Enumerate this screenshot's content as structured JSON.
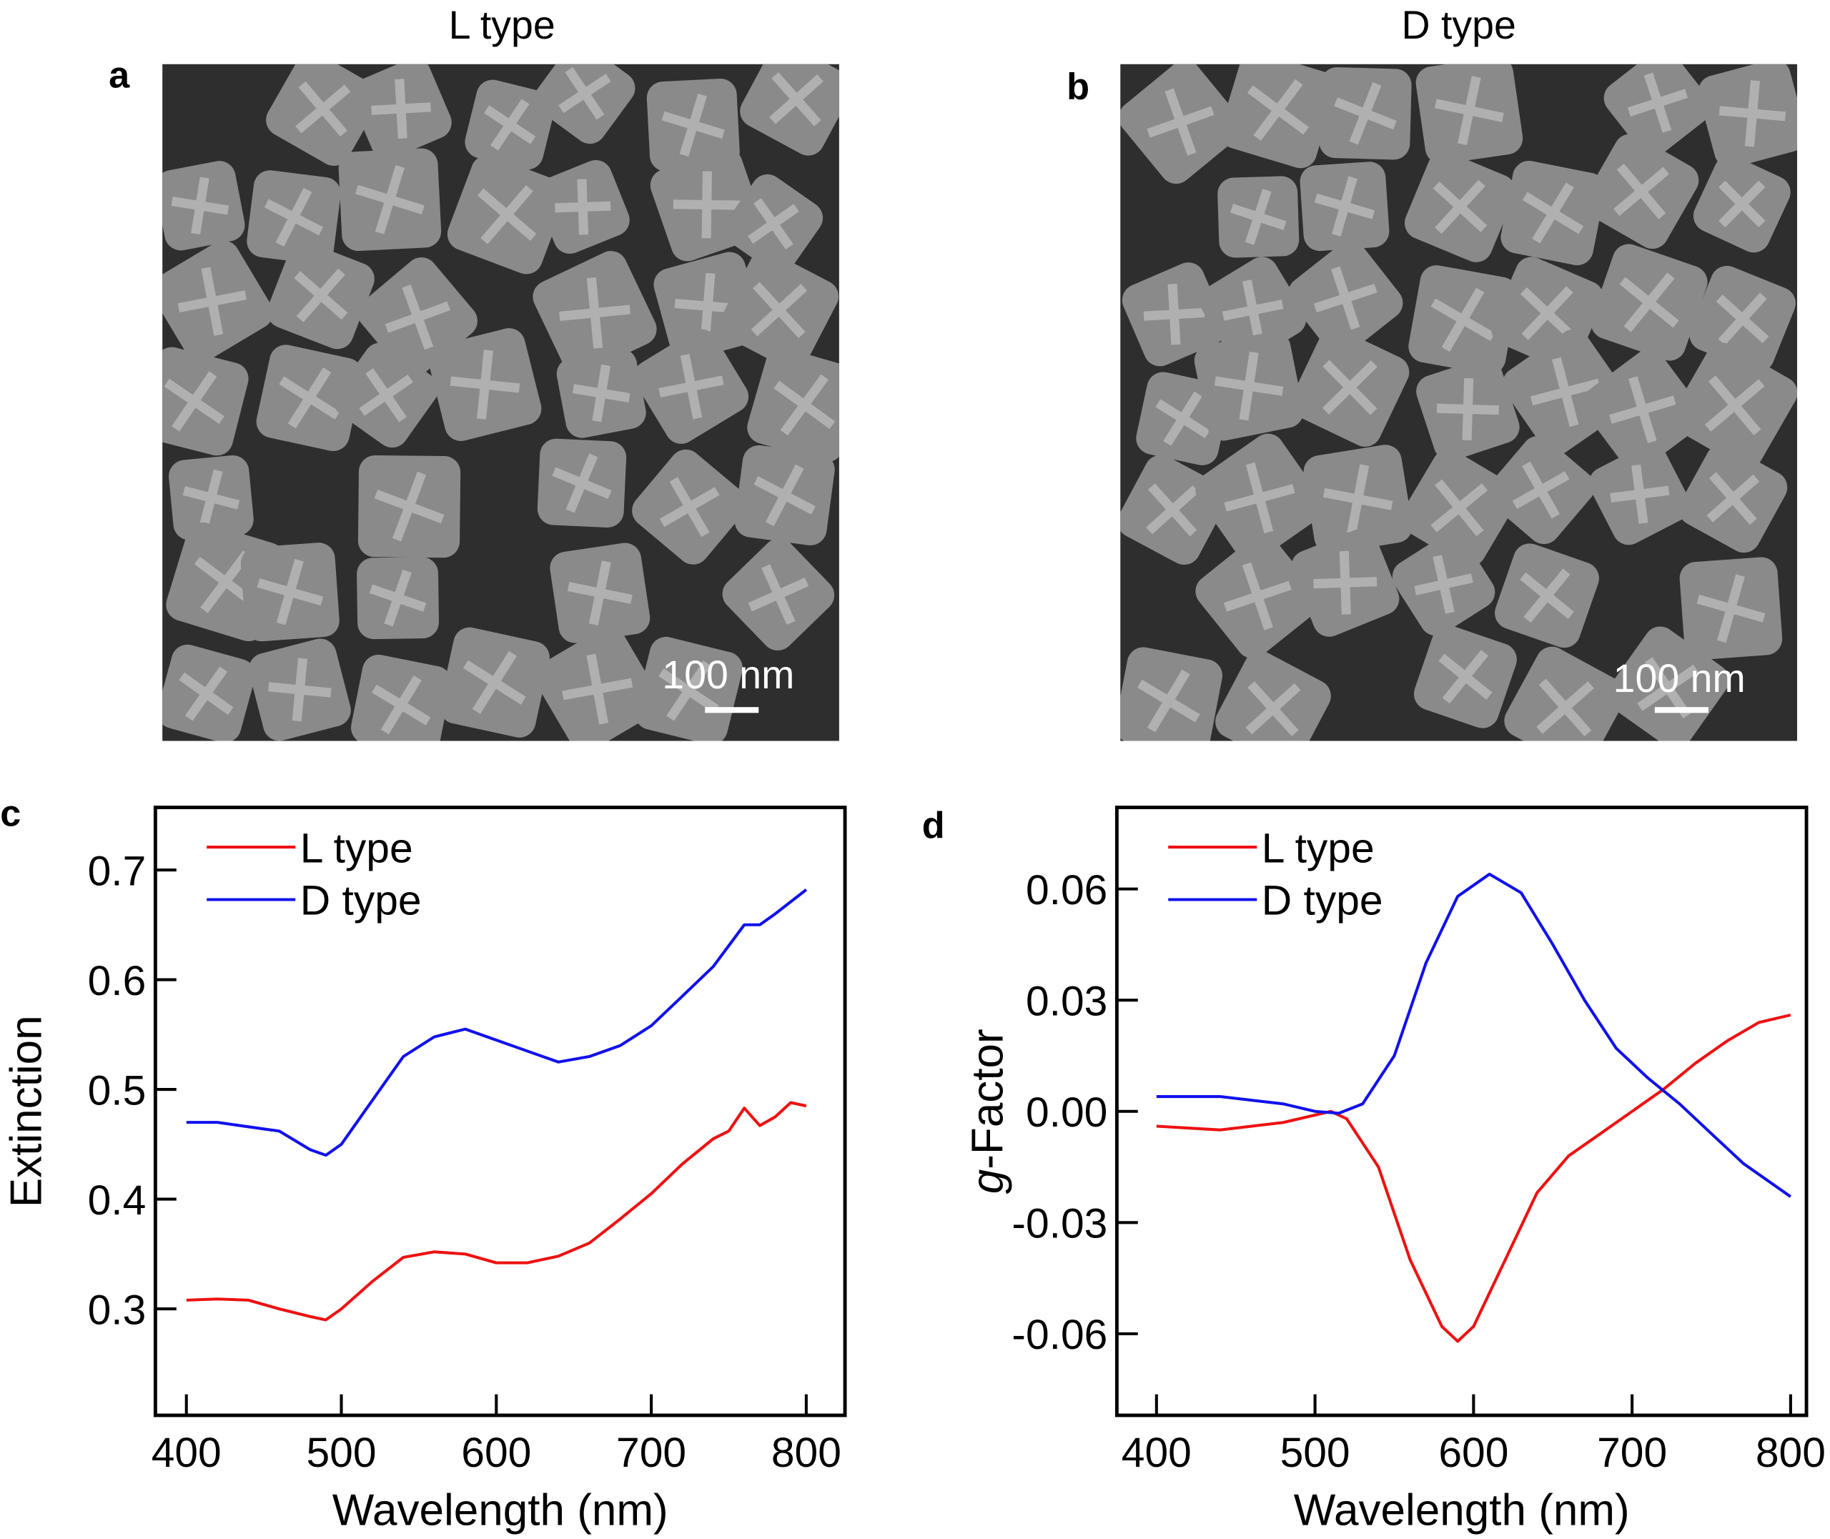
{
  "panels": {
    "a": {
      "letter": "a",
      "title": "L type",
      "scale_bar": "100 nm"
    },
    "b": {
      "letter": "b",
      "title": "D type",
      "scale_bar": "100 nm"
    },
    "c": {
      "letter": "c"
    },
    "d": {
      "letter": "d"
    }
  },
  "colors": {
    "L": "#ee1111",
    "D": "#1111ee"
  },
  "chart_data": [
    {
      "type": "line",
      "panel": "c",
      "xlabel": "Wavelength (nm)",
      "ylabel": "Extinction",
      "xlim": [
        380,
        825
      ],
      "ylim": [
        0.203,
        0.757
      ],
      "xticks": [
        "400",
        "500",
        "600",
        "700",
        "800"
      ],
      "yticks": [
        "0.3",
        "0.4",
        "0.5",
        "0.6",
        "0.7"
      ],
      "legend": "top-left",
      "grid": false,
      "series": [
        {
          "name": "L type",
          "color": "#ee1111",
          "x": [
            400,
            420,
            440,
            460,
            480,
            490,
            500,
            520,
            540,
            560,
            580,
            600,
            620,
            640,
            660,
            680,
            700,
            720,
            740,
            750,
            760,
            770,
            780,
            790,
            800
          ],
          "y": [
            0.308,
            0.309,
            0.308,
            0.3,
            0.293,
            0.29,
            0.3,
            0.325,
            0.347,
            0.352,
            0.35,
            0.342,
            0.342,
            0.348,
            0.36,
            0.382,
            0.405,
            0.432,
            0.455,
            0.462,
            0.483,
            0.467,
            0.475,
            0.488,
            0.485
          ]
        },
        {
          "name": "D type",
          "color": "#1111ee",
          "x": [
            400,
            420,
            440,
            460,
            480,
            490,
            500,
            520,
            540,
            560,
            580,
            600,
            620,
            640,
            660,
            680,
            700,
            720,
            740,
            760,
            770,
            780,
            800
          ],
          "y": [
            0.47,
            0.47,
            0.466,
            0.462,
            0.445,
            0.44,
            0.45,
            0.49,
            0.53,
            0.548,
            0.555,
            0.545,
            0.535,
            0.525,
            0.53,
            0.54,
            0.558,
            0.585,
            0.612,
            0.65,
            0.65,
            0.66,
            0.682
          ]
        }
      ]
    },
    {
      "type": "line",
      "panel": "d",
      "xlabel": "Wavelength (nm)",
      "ylabel_italic": "g",
      "ylabel": "-Factor",
      "xlim": [
        375,
        810
      ],
      "ylim": [
        -0.082,
        0.082
      ],
      "xticks": [
        "400",
        "500",
        "600",
        "700",
        "800"
      ],
      "yticks": [
        "-0.06",
        "-0.03",
        "0.00",
        "0.03",
        "0.06"
      ],
      "legend": "top-left",
      "grid": false,
      "series": [
        {
          "name": "L type",
          "color": "#ee1111",
          "x": [
            400,
            440,
            480,
            510,
            520,
            540,
            560,
            580,
            590,
            600,
            620,
            640,
            660,
            680,
            700,
            720,
            740,
            760,
            780,
            800
          ],
          "y": [
            -0.004,
            -0.005,
            -0.003,
            0.0,
            -0.002,
            -0.015,
            -0.04,
            -0.058,
            -0.062,
            -0.058,
            -0.04,
            -0.022,
            -0.012,
            -0.006,
            0.0,
            0.006,
            0.013,
            0.019,
            0.024,
            0.026
          ]
        },
        {
          "name": "D type",
          "color": "#1111ee",
          "x": [
            400,
            440,
            480,
            500,
            515,
            530,
            550,
            570,
            590,
            610,
            630,
            650,
            670,
            690,
            710,
            730,
            750,
            770,
            800
          ],
          "y": [
            0.004,
            0.004,
            0.002,
            0.0,
            -0.0005,
            0.002,
            0.015,
            0.04,
            0.058,
            0.064,
            0.059,
            0.045,
            0.03,
            0.017,
            0.009,
            0.002,
            -0.006,
            -0.014,
            -0.023
          ]
        }
      ]
    }
  ]
}
